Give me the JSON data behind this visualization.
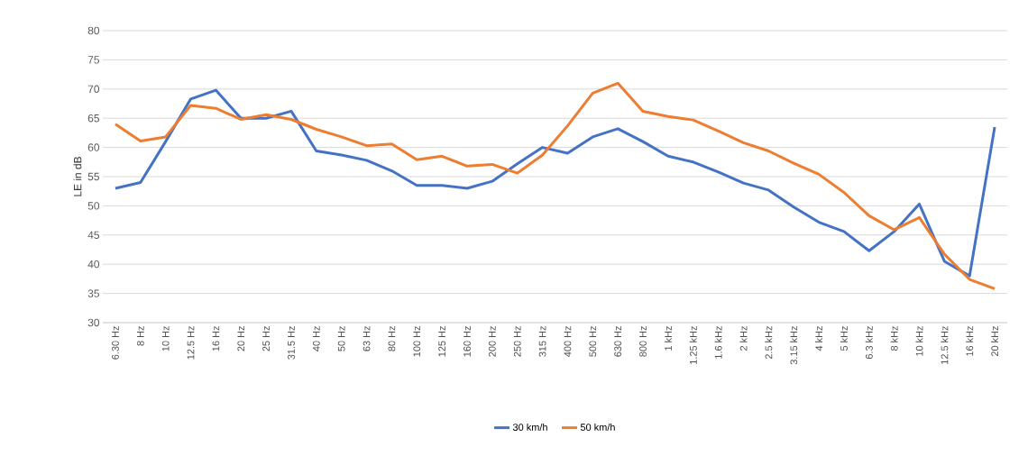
{
  "chart_data": {
    "type": "line",
    "ylabel": "LE in dB",
    "categories": [
      "6.30 Hz",
      "8 Hz",
      "10 Hz",
      "12.5 Hz",
      "16 Hz",
      "20 Hz",
      "25 Hz",
      "31.5 Hz",
      "40 Hz",
      "50 Hz",
      "63 Hz",
      "80 Hz",
      "100 Hz",
      "125 Hz",
      "160 Hz",
      "200 Hz",
      "250 Hz",
      "315 Hz",
      "400 Hz",
      "500 Hz",
      "630 Hz",
      "800 Hz",
      "1 kHz",
      "1.25 kHz",
      "1.6 kHz",
      "2 kHz",
      "2.5 kHz",
      "3.15 kHz",
      "4 kHz",
      "5 kHz",
      "6.3 kHz",
      "8 kHz",
      "10 kHz",
      "12.5 kHz",
      "16 kHz",
      "20 kHz"
    ],
    "series": [
      {
        "name": "30 km/h",
        "color": "#4472c4",
        "values": [
          53,
          54,
          61,
          68.3,
          69.8,
          65,
          65,
          66.2,
          59.4,
          58.7,
          57.8,
          56,
          53.5,
          53.5,
          53,
          54.2,
          57.2,
          60,
          59,
          61.8,
          63.2,
          61,
          58.5,
          57.5,
          55.8,
          53.9,
          52.7,
          49.8,
          47.2,
          45.6,
          42.3,
          45.6,
          50.3,
          40.5,
          38,
          63.5
        ]
      },
      {
        "name": "50 km/h",
        "color": "#ed7d31",
        "values": [
          64,
          61.1,
          61.8,
          67.2,
          66.7,
          64.8,
          65.6,
          64.8,
          63.1,
          61.8,
          60.3,
          60.6,
          57.9,
          58.5,
          56.8,
          57.1,
          55.6,
          58.7,
          63.7,
          69.3,
          71,
          66.2,
          65.3,
          64.7,
          62.8,
          60.8,
          59.4,
          57.3,
          55.4,
          52.3,
          48.3,
          45.9,
          48,
          41.7,
          37.4,
          35.8
        ]
      }
    ],
    "ylim": [
      30,
      80
    ],
    "yticks": [
      30,
      35,
      40,
      45,
      50,
      55,
      60,
      65,
      70,
      75,
      80
    ],
    "grid": "y",
    "legend": "bottom",
    "marker": "none",
    "line_style": "solid"
  }
}
